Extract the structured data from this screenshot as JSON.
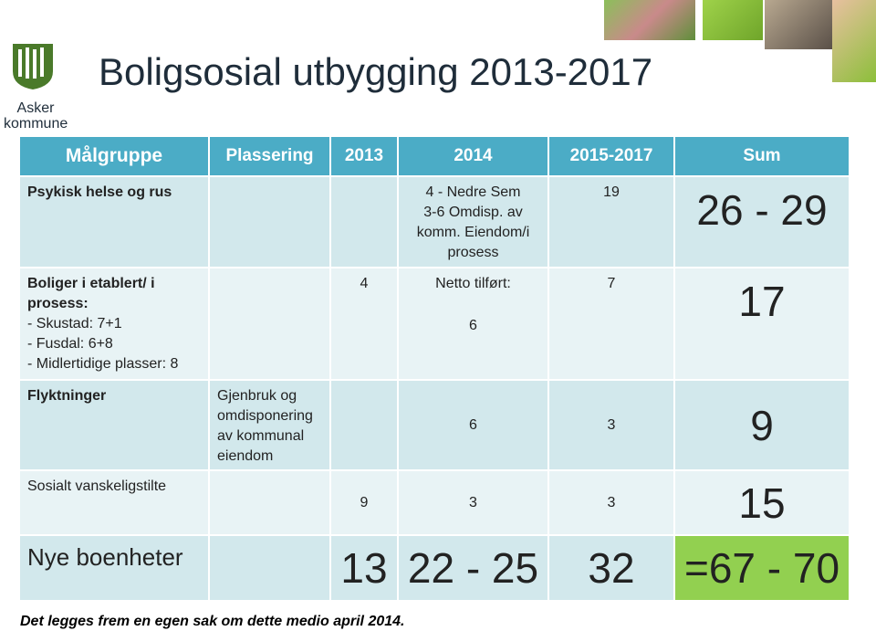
{
  "header": {
    "logo_lines": [
      "Asker",
      "kommune"
    ],
    "title": "Boligsosial utbygging 2013-2017"
  },
  "table": {
    "columns": {
      "malgruppe": "Målgruppe",
      "plassering": "Plassering",
      "y2013": "2013",
      "y2014": "2014",
      "y2015_2017": "2015-2017",
      "sum": "Sum"
    },
    "rows": [
      {
        "malgruppe": [
          "Psykisk helse og rus"
        ],
        "y2014": [
          "4 - Nedre Sem",
          "3-6 Omdisp. av komm. Eiendom/i prosess"
        ],
        "y2015_2017": [
          "19"
        ],
        "sum": [
          "26 - 29"
        ]
      },
      {
        "malgruppe": [
          "Boliger i etablert/ i prosess:",
          "- Skustad: 7+1",
          "- Fusdal: 6+8",
          "- Midlertidige plasser: 8"
        ],
        "y2013": [
          "4"
        ],
        "y2014": [
          "Netto tilført:",
          "6"
        ],
        "y2015_2017": [
          "7"
        ],
        "sum": [
          "17"
        ]
      },
      {
        "malgruppe": [
          "Flyktninger"
        ],
        "plassering": [
          "Gjenbruk og omdisponering av kommunal eiendom"
        ],
        "y2014": [
          "6"
        ],
        "y2015_2017": [
          "3"
        ],
        "sum": [
          "9"
        ]
      },
      {
        "malgruppe": [
          "Sosialt vanskeligstilte"
        ],
        "y2013": [
          "9"
        ],
        "y2014": [
          "3"
        ],
        "y2015_2017": [
          "3"
        ],
        "sum": [
          "15"
        ]
      },
      {
        "malgruppe": [
          "Nye boenheter"
        ],
        "y2013": [
          "13"
        ],
        "y2014": [
          "22 - 25"
        ],
        "y2015_2017": [
          "32"
        ],
        "sum": [
          "=67 - 70"
        ]
      }
    ]
  },
  "footer": "Det legges frem en egen sak om dette medio april 2014."
}
